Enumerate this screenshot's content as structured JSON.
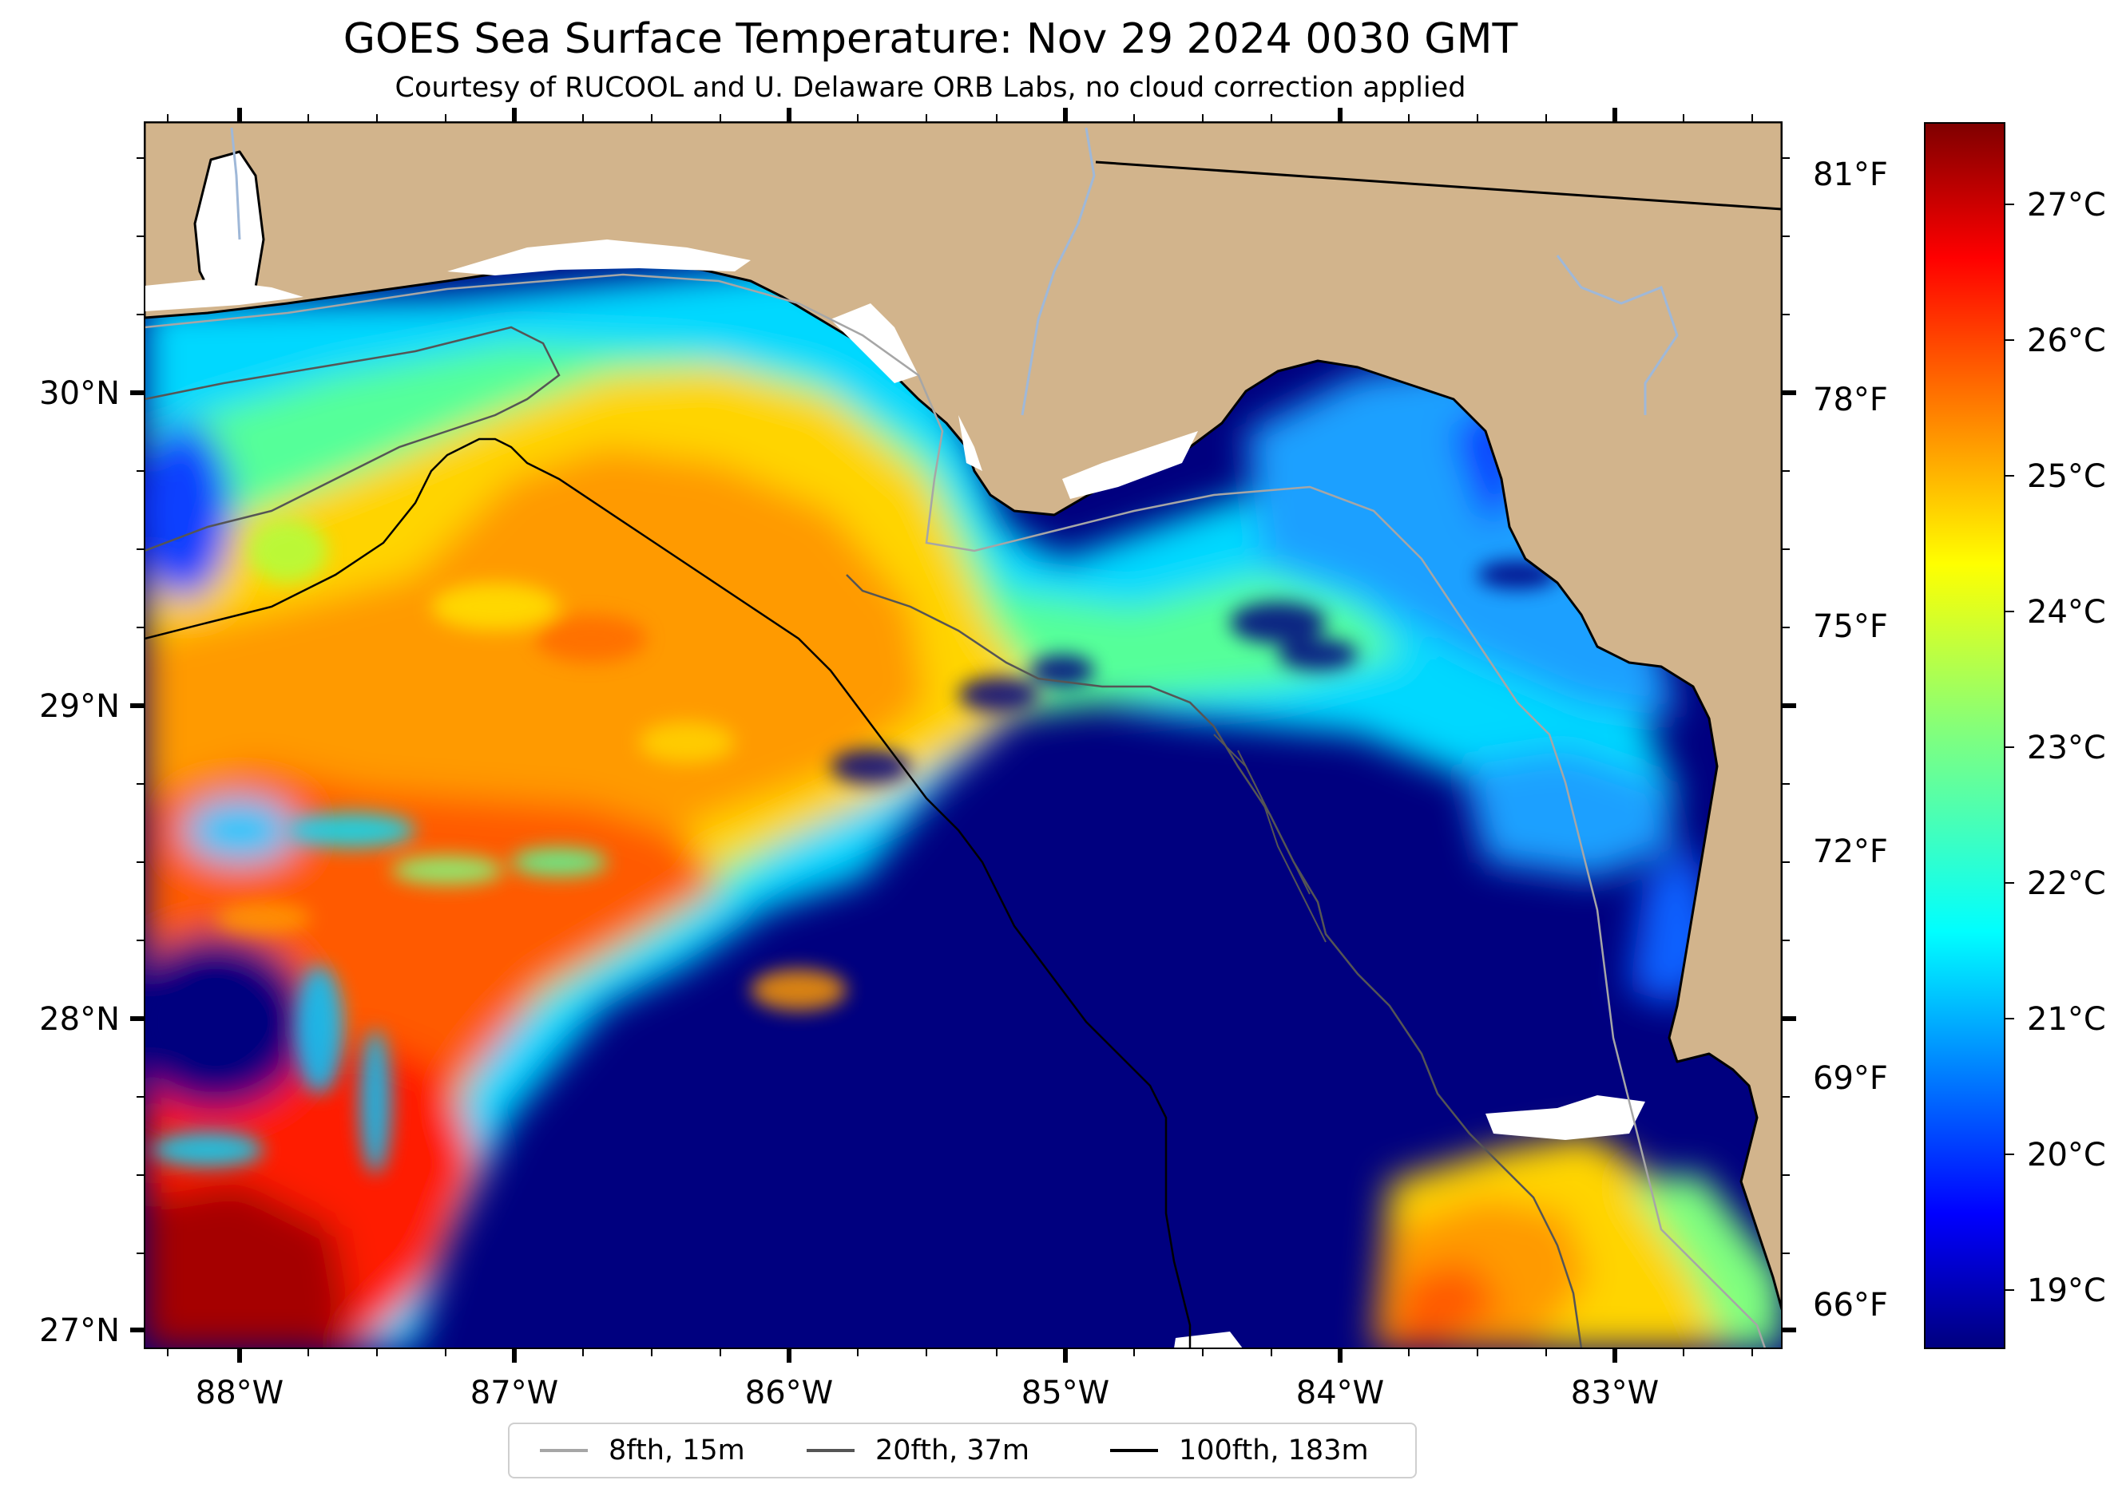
{
  "title": "GOES Sea Surface Temperature: Nov 29 2024 0030 GMT",
  "subtitle": "Courtesy of RUCOOL and U. Delaware ORB Labs, no cloud correction applied",
  "lat_ticks": [
    "30°N",
    "29°N",
    "28°N",
    "27°N"
  ],
  "lon_ticks": [
    "88°W",
    "87°W",
    "86°W",
    "85°W",
    "84°W",
    "83°W"
  ],
  "fahrenheit_ticks": [
    "81°F",
    "78°F",
    "75°F",
    "72°F",
    "69°F",
    "66°F"
  ],
  "colorbar": {
    "ticks": [
      "27°C",
      "26°C",
      "25°C",
      "24°C",
      "23°C",
      "22°C",
      "21°C",
      "20°C",
      "19°C"
    ],
    "colormap": "jet",
    "range_c": [
      18.6,
      27.6
    ]
  },
  "legend": [
    {
      "label": "8fth, 15m",
      "color": "#a6a6a6"
    },
    {
      "label": "20fth, 37m",
      "color": "#555555"
    },
    {
      "label": "100fth, 183m",
      "color": "#000000"
    }
  ],
  "colors": {
    "land": "#d2b48c",
    "cloud_mask": "#ffffff",
    "cold_water": "#00007f",
    "river": "#9fb8d8",
    "coastline": "#000000"
  }
}
